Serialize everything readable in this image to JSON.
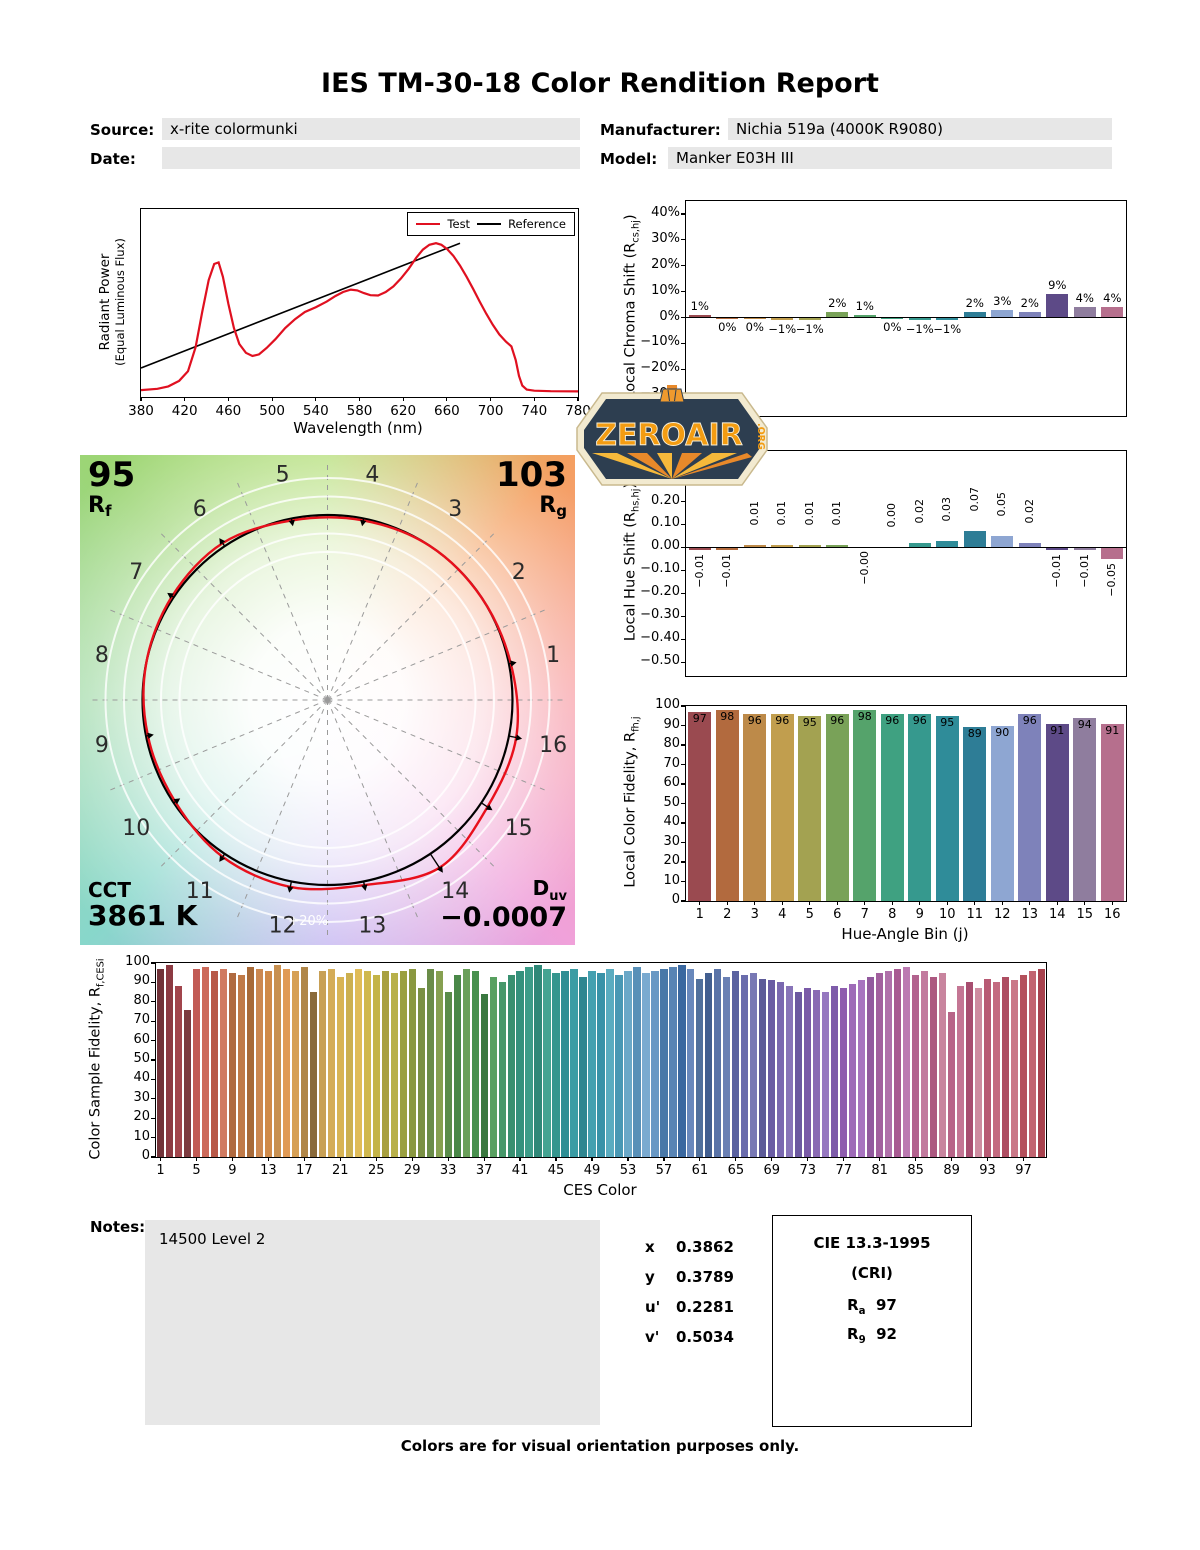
{
  "title": "IES TM-30-18 Color Rendition Report",
  "header": {
    "source_label": "Source:",
    "source_value": "x-rite colormunki",
    "manufacturer_label": "Manufacturer:",
    "manufacturer_value": "Nichia 519a (4000K R9080)",
    "date_label": "Date:",
    "date_value": "",
    "model_label": "Model:",
    "model_value": "Manker E03H III"
  },
  "watermark": {
    "name": "ZEROAIR",
    "tld": ".ORG"
  },
  "palette": {
    "test_color": "#e01020",
    "reference_color": "#000000",
    "hue_bins": [
      "#9a4a50",
      "#b26a3e",
      "#bd8a49",
      "#c19e4e",
      "#a3a251",
      "#79a258",
      "#55a36b",
      "#3fa181",
      "#36998e",
      "#2f8c99",
      "#2e7d96",
      "#8ea6d2",
      "#7e82ba",
      "#5d4a87",
      "#8f7d9e",
      "#b66f8d"
    ]
  },
  "cvg": {
    "rf": {
      "value": "95",
      "sym": "R",
      "sub": "f"
    },
    "rg": {
      "value": "103",
      "sym": "R",
      "sub": "g"
    },
    "cct": {
      "label": "CCT",
      "value": "3861 K"
    },
    "duv": {
      "sym": "D",
      "sub": "uv",
      "value": "−0.0007"
    },
    "ring_label": "+20%",
    "bins": [
      1,
      2,
      3,
      4,
      5,
      6,
      7,
      8,
      9,
      10,
      11,
      12,
      13,
      14,
      15,
      16
    ]
  },
  "chart_data": [
    {
      "id": "spd",
      "type": "line",
      "xlabel": "Wavelength (nm)",
      "ylabel": "Radiant Power",
      "ylabel_sub": "(Equal Luminous Flux)",
      "xlim": [
        380,
        780
      ],
      "xticks": [
        380,
        420,
        460,
        500,
        540,
        580,
        620,
        660,
        700,
        740,
        780
      ],
      "legend": [
        {
          "label": "Test",
          "color": "#e01020"
        },
        {
          "label": "Reference",
          "color": "#000000"
        }
      ],
      "series": [
        {
          "name": "Reference",
          "color": "#000000",
          "points": [
            [
              380,
              0.15
            ],
            [
              672,
              0.93
            ]
          ]
        },
        {
          "name": "Test",
          "color": "#e01020",
          "points": [
            [
              380,
              0.012
            ],
            [
              395,
              0.02
            ],
            [
              405,
              0.035
            ],
            [
              415,
              0.07
            ],
            [
              423,
              0.13
            ],
            [
              430,
              0.28
            ],
            [
              436,
              0.5
            ],
            [
              442,
              0.7
            ],
            [
              447,
              0.8
            ],
            [
              451,
              0.81
            ],
            [
              455,
              0.72
            ],
            [
              460,
              0.55
            ],
            [
              465,
              0.4
            ],
            [
              470,
              0.3
            ],
            [
              476,
              0.245
            ],
            [
              482,
              0.225
            ],
            [
              488,
              0.235
            ],
            [
              495,
              0.275
            ],
            [
              503,
              0.33
            ],
            [
              512,
              0.4
            ],
            [
              521,
              0.455
            ],
            [
              530,
              0.5
            ],
            [
              540,
              0.53
            ],
            [
              550,
              0.565
            ],
            [
              558,
              0.6
            ],
            [
              565,
              0.625
            ],
            [
              572,
              0.64
            ],
            [
              578,
              0.635
            ],
            [
              584,
              0.618
            ],
            [
              590,
              0.605
            ],
            [
              597,
              0.603
            ],
            [
              604,
              0.625
            ],
            [
              611,
              0.66
            ],
            [
              618,
              0.71
            ],
            [
              625,
              0.77
            ],
            [
              632,
              0.84
            ],
            [
              638,
              0.89
            ],
            [
              644,
              0.92
            ],
            [
              650,
              0.93
            ],
            [
              655,
              0.92
            ],
            [
              660,
              0.895
            ],
            [
              666,
              0.85
            ],
            [
              672,
              0.79
            ],
            [
              678,
              0.72
            ],
            [
              684,
              0.645
            ],
            [
              690,
              0.565
            ],
            [
              696,
              0.49
            ],
            [
              702,
              0.42
            ],
            [
              708,
              0.36
            ],
            [
              714,
              0.315
            ],
            [
              719,
              0.285
            ],
            [
              723,
              0.2
            ],
            [
              726,
              0.1
            ],
            [
              729,
              0.04
            ],
            [
              733,
              0.015
            ],
            [
              740,
              0.008
            ],
            [
              755,
              0.005
            ],
            [
              780,
              0.004
            ]
          ]
        }
      ]
    },
    {
      "id": "local-chroma-shift",
      "type": "bar",
      "ylabel_pre": "Local Chroma Shift (R",
      "ylabel_sub": "cs,hj",
      "ylabel_post": ")",
      "ylim": [
        -38,
        45
      ],
      "yticks": [
        [
          40,
          "40%"
        ],
        [
          30,
          "30%"
        ],
        [
          20,
          "20%"
        ],
        [
          10,
          "10%"
        ],
        [
          0,
          "0%"
        ],
        [
          -10,
          "−10%"
        ],
        [
          -20,
          "−20%"
        ],
        [
          -30,
          "−30%"
        ]
      ],
      "values": [
        1,
        0,
        0,
        -1,
        -1,
        2,
        1,
        0,
        -1,
        -1,
        2,
        3,
        2,
        9,
        4,
        4
      ],
      "labels": [
        "1%",
        "0%",
        "0%",
        "−1%",
        "−1%",
        "2%",
        "1%",
        "0%",
        "−1%",
        "−1%",
        "2%",
        "3%",
        "2%",
        "9%",
        "4%",
        "4%"
      ]
    },
    {
      "id": "local-hue-shift",
      "type": "bar",
      "ylabel_pre": "Local Hue Shift (R",
      "ylabel_sub": "hs,hj",
      "ylabel_post": ")",
      "ylim": [
        -0.56,
        0.42
      ],
      "yticks": [
        [
          0.3,
          "0.30"
        ],
        [
          0.2,
          "0.20"
        ],
        [
          0.1,
          "0.10"
        ],
        [
          0.0,
          "0.00"
        ],
        [
          -0.1,
          "−0.10"
        ],
        [
          -0.2,
          "−0.20"
        ],
        [
          -0.3,
          "−0.30"
        ],
        [
          -0.4,
          "−0.40"
        ],
        [
          -0.5,
          "−0.50"
        ]
      ],
      "values": [
        -0.01,
        -0.01,
        0.01,
        0.01,
        0.01,
        0.01,
        0,
        0,
        0.02,
        0.03,
        0.07,
        0.05,
        0.02,
        -0.01,
        -0.01,
        -0.05
      ],
      "labels": [
        "−0.01",
        "−0.01",
        "0.01",
        "0.01",
        "0.01",
        "0.01",
        "−0.00",
        "0.00",
        "0.02",
        "0.03",
        "0.07",
        "0.05",
        "0.02",
        "−0.01",
        "−0.01",
        "−0.05"
      ]
    },
    {
      "id": "local-color-fidelity",
      "type": "bar",
      "ylabel_pre": "Local Color Fidelity, R",
      "ylabel_sub": "fh,j",
      "ylabel_post": "",
      "xlabel": "Hue-Angle Bin (j)",
      "ylim": [
        0,
        100
      ],
      "yticks": [
        [
          100,
          "100"
        ],
        [
          90,
          "90"
        ],
        [
          80,
          "80"
        ],
        [
          70,
          "70"
        ],
        [
          60,
          "60"
        ],
        [
          50,
          "50"
        ],
        [
          40,
          "40"
        ],
        [
          30,
          "30"
        ],
        [
          20,
          "20"
        ],
        [
          10,
          "10"
        ],
        [
          0,
          "0"
        ]
      ],
      "xticks": [
        1,
        2,
        3,
        4,
        5,
        6,
        7,
        8,
        9,
        10,
        11,
        12,
        13,
        14,
        15,
        16
      ],
      "values": [
        97,
        98,
        96,
        96,
        95,
        96,
        98,
        96,
        96,
        95,
        89,
        90,
        96,
        91,
        94,
        91
      ],
      "labels": [
        "97",
        "98",
        "96",
        "96",
        "95",
        "96",
        "98",
        "96",
        "96",
        "95",
        "89",
        "90",
        "96",
        "91",
        "94",
        "91"
      ]
    },
    {
      "id": "ces-sample-fidelity",
      "type": "bar",
      "ylabel_pre": "Color Sample Fidelity, R",
      "ylabel_sub": "f,CESi",
      "ylabel_post": "",
      "xlabel": "CES Color",
      "ylim": [
        0,
        100
      ],
      "yticks": [
        [
          100,
          "100"
        ],
        [
          90,
          "90"
        ],
        [
          80,
          "80"
        ],
        [
          70,
          "70"
        ],
        [
          60,
          "60"
        ],
        [
          50,
          "50"
        ],
        [
          40,
          "40"
        ],
        [
          30,
          "30"
        ],
        [
          20,
          "20"
        ],
        [
          10,
          "10"
        ],
        [
          0,
          "0"
        ]
      ],
      "xticks": [
        1,
        5,
        9,
        13,
        17,
        21,
        25,
        29,
        33,
        37,
        41,
        45,
        49,
        53,
        57,
        61,
        65,
        69,
        73,
        77,
        81,
        85,
        89,
        93,
        97
      ],
      "values": [
        97,
        99,
        88,
        76,
        97,
        98,
        96,
        97,
        95,
        94,
        98,
        97,
        96,
        99,
        97,
        96,
        98,
        85,
        96,
        97,
        93,
        95,
        97,
        96,
        94,
        96,
        95,
        96,
        97,
        87,
        97,
        96,
        85,
        94,
        97,
        96,
        84,
        93,
        90,
        94,
        96,
        98,
        99,
        97,
        95,
        96,
        97,
        93,
        96,
        95,
        97,
        94,
        96,
        98,
        95,
        96,
        97,
        98,
        99,
        97,
        92,
        95,
        97,
        93,
        96,
        94,
        95,
        92,
        91,
        90,
        88,
        85,
        87,
        86,
        85,
        88,
        87,
        89,
        91,
        93,
        95,
        96,
        97,
        98,
        94,
        96,
        93,
        95,
        75,
        88,
        90,
        87,
        92,
        90,
        93,
        91,
        94,
        96,
        97
      ],
      "colors": [
        "#713238",
        "#8c3a42",
        "#a2454c",
        "#7d3b40",
        "#c25b55",
        "#cc6a5a",
        "#b85948",
        "#d07a60",
        "#b06a40",
        "#c07a48",
        "#a86a38",
        "#cc8850",
        "#d08a48",
        "#c89050",
        "#e09a55",
        "#d6a055",
        "#b08648",
        "#8a6a3a",
        "#c8a055",
        "#d4ac58",
        "#d8b455",
        "#ccb050",
        "#e0bc58",
        "#d0b84e",
        "#c4b448",
        "#a8a040",
        "#b8b04a",
        "#9aa040",
        "#8a9840",
        "#7a9044",
        "#6a8c48",
        "#86a050",
        "#5a8c4a",
        "#4a8848",
        "#6aa05a",
        "#48904e",
        "#3a7840",
        "#58a060",
        "#46986a",
        "#389070",
        "#34917c",
        "#3c9c88",
        "#2f8878",
        "#44a492",
        "#35968e",
        "#2f8e94",
        "#3a9ca4",
        "#2e8690",
        "#44a0b0",
        "#3892a8",
        "#5aacc0",
        "#4898b4",
        "#6aa8c8",
        "#5890b8",
        "#7aaad0",
        "#6898c4",
        "#4878a8",
        "#5884b4",
        "#3a68a0",
        "#6888bc",
        "#50709c",
        "#425f90",
        "#5a74a8",
        "#6a80b4",
        "#5a62a0",
        "#6a6cac",
        "#7878b4",
        "#5c5a98",
        "#6a5ca4",
        "#7a68b0",
        "#8874b8",
        "#6c58a0",
        "#7a5aa8",
        "#8a6ab4",
        "#9678c0",
        "#7e5caa",
        "#8e5cae",
        "#9e6ab8",
        "#a874c0",
        "#925a9e",
        "#a2609e",
        "#b070aa",
        "#a85a92",
        "#bc7ab2",
        "#b2628e",
        "#c27a9e",
        "#ac5880",
        "#c8849e",
        "#b86488",
        "#c47694",
        "#a84e70",
        "#ce8ca0",
        "#b85a74",
        "#c46a80",
        "#ae4e62",
        "#ca7888",
        "#b4505c",
        "#c26470",
        "#a8424e"
      ]
    }
  ],
  "notes": {
    "label": "Notes:",
    "text": "14500 Level 2"
  },
  "chromaticity": {
    "rows": [
      {
        "label": "x",
        "value": "0.3862"
      },
      {
        "label": "y",
        "value": "0.3789"
      },
      {
        "label": "u'",
        "value": "0.2281"
      },
      {
        "label": "v'",
        "value": "0.5034"
      }
    ]
  },
  "cri": {
    "title": "CIE 13.3-1995",
    "subtitle": "(CRI)",
    "rows": [
      {
        "sym": "R",
        "sub": "a",
        "value": "97"
      },
      {
        "sym": "R",
        "sub": "9",
        "value": "92"
      }
    ]
  },
  "footer": "Colors are for visual orientation purposes only."
}
